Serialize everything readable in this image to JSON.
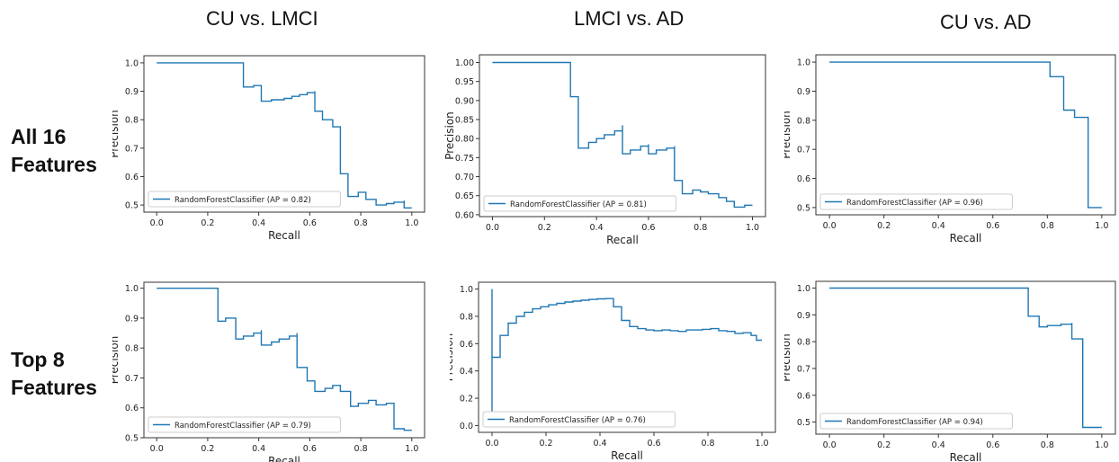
{
  "column_titles": [
    "CU vs. LMCI",
    "LMCI vs. AD",
    "CU vs. AD"
  ],
  "row_labels": [
    {
      "line1": "All 16",
      "line2": "Features"
    },
    {
      "line1": "Top 8",
      "line2": "Features"
    }
  ],
  "colors": {
    "curve": "#1f77b4",
    "axis": "#333333"
  },
  "chart_data": [
    {
      "type": "line",
      "step": "post",
      "legend_position": "lower-left",
      "xlabel": "Recall",
      "ylabel": "Precision",
      "xlim": [
        -0.05,
        1.05
      ],
      "ylim": [
        0.475,
        1.025
      ],
      "xticks": [
        0.0,
        0.2,
        0.4,
        0.6,
        0.8,
        1.0
      ],
      "yticks": [
        0.5,
        0.6,
        0.7,
        0.8,
        0.9,
        1.0
      ],
      "series": [
        {
          "name": "RandomForestClassifier (AP = 0.82)",
          "x": [
            0.0,
            0.34,
            0.34,
            0.38,
            0.41,
            0.41,
            0.45,
            0.5,
            0.53,
            0.56,
            0.59,
            0.62,
            0.62,
            0.65,
            0.69,
            0.72,
            0.72,
            0.75,
            0.75,
            0.79,
            0.82,
            0.82,
            0.86,
            0.9,
            0.93,
            0.97,
            0.97,
            1.0
          ],
          "y": [
            1.0,
            1.0,
            0.915,
            0.92,
            0.92,
            0.865,
            0.87,
            0.875,
            0.882,
            0.888,
            0.895,
            0.9,
            0.83,
            0.8,
            0.775,
            0.775,
            0.61,
            0.61,
            0.53,
            0.545,
            0.535,
            0.52,
            0.5,
            0.505,
            0.51,
            0.515,
            0.49,
            0.49
          ]
        }
      ]
    },
    {
      "type": "line",
      "step": "post",
      "legend_position": "lower-left",
      "xlabel": "Recall",
      "ylabel": "Precision",
      "xlim": [
        -0.05,
        1.05
      ],
      "ylim": [
        0.595,
        1.02
      ],
      "xticks": [
        0.0,
        0.2,
        0.4,
        0.6,
        0.8,
        1.0
      ],
      "yticks": [
        0.6,
        0.65,
        0.7,
        0.75,
        0.8,
        0.85,
        0.9,
        0.95,
        1.0
      ],
      "series": [
        {
          "name": "RandomForestClassifier (AP = 0.81)",
          "x": [
            0.0,
            0.3,
            0.3,
            0.33,
            0.33,
            0.37,
            0.4,
            0.43,
            0.47,
            0.5,
            0.5,
            0.53,
            0.57,
            0.6,
            0.6,
            0.63,
            0.67,
            0.7,
            0.7,
            0.73,
            0.77,
            0.8,
            0.83,
            0.87,
            0.9,
            0.93,
            0.97,
            1.0
          ],
          "y": [
            1.0,
            1.0,
            0.91,
            0.91,
            0.775,
            0.79,
            0.8,
            0.81,
            0.82,
            0.835,
            0.76,
            0.77,
            0.78,
            0.785,
            0.76,
            0.77,
            0.775,
            0.78,
            0.69,
            0.655,
            0.665,
            0.66,
            0.655,
            0.645,
            0.635,
            0.62,
            0.625,
            0.625
          ]
        }
      ]
    },
    {
      "type": "line",
      "step": "post",
      "legend_position": "lower-left",
      "xlabel": "Recall",
      "ylabel": "Precision",
      "xlim": [
        -0.05,
        1.05
      ],
      "ylim": [
        0.475,
        1.025
      ],
      "xticks": [
        0.0,
        0.2,
        0.4,
        0.6,
        0.8,
        1.0
      ],
      "yticks": [
        0.5,
        0.6,
        0.7,
        0.8,
        0.9,
        1.0
      ],
      "series": [
        {
          "name": "RandomForestClassifier (AP = 0.96)",
          "x": [
            0.0,
            0.81,
            0.81,
            0.86,
            0.86,
            0.9,
            0.9,
            0.95,
            0.95,
            1.0
          ],
          "y": [
            1.0,
            1.0,
            0.95,
            0.95,
            0.835,
            0.835,
            0.81,
            0.81,
            0.5,
            0.5
          ]
        }
      ]
    },
    {
      "type": "line",
      "step": "post",
      "legend_position": "lower-left",
      "xlabel": "Recall",
      "ylabel": "Precision",
      "xlim": [
        -0.05,
        1.05
      ],
      "ylim": [
        0.5,
        1.02
      ],
      "xticks": [
        0.0,
        0.2,
        0.4,
        0.6,
        0.8,
        1.0
      ],
      "yticks": [
        0.5,
        0.6,
        0.7,
        0.8,
        0.9,
        1.0
      ],
      "series": [
        {
          "name": "RandomForestClassifier (AP = 0.79)",
          "x": [
            0.0,
            0.24,
            0.24,
            0.27,
            0.31,
            0.31,
            0.34,
            0.38,
            0.41,
            0.41,
            0.45,
            0.48,
            0.52,
            0.55,
            0.55,
            0.59,
            0.62,
            0.66,
            0.69,
            0.72,
            0.76,
            0.79,
            0.83,
            0.86,
            0.9,
            0.93,
            0.97,
            1.0
          ],
          "y": [
            1.0,
            1.0,
            0.89,
            0.9,
            0.9,
            0.83,
            0.84,
            0.85,
            0.86,
            0.81,
            0.82,
            0.83,
            0.84,
            0.85,
            0.735,
            0.69,
            0.655,
            0.665,
            0.675,
            0.655,
            0.605,
            0.615,
            0.625,
            0.61,
            0.615,
            0.53,
            0.525,
            0.525
          ]
        }
      ]
    },
    {
      "type": "line",
      "step": "post",
      "legend_position": "lower-left",
      "xlabel": "Recall",
      "ylabel": "Precision",
      "xlim": [
        -0.05,
        1.05
      ],
      "ylim": [
        -0.05,
        1.05
      ],
      "xticks": [
        0.0,
        0.2,
        0.4,
        0.6,
        0.8,
        1.0
      ],
      "yticks": [
        0.0,
        0.2,
        0.4,
        0.6,
        0.8,
        1.0
      ],
      "series": [
        {
          "name": "RandomForestClassifier (AP = 0.76)",
          "x": [
            0.0,
            0.0,
            0.0,
            0.0,
            0.03,
            0.06,
            0.09,
            0.12,
            0.15,
            0.18,
            0.21,
            0.24,
            0.27,
            0.3,
            0.33,
            0.36,
            0.39,
            0.42,
            0.45,
            0.48,
            0.51,
            0.54,
            0.57,
            0.6,
            0.63,
            0.66,
            0.69,
            0.72,
            0.75,
            0.78,
            0.81,
            0.84,
            0.87,
            0.9,
            0.93,
            0.96,
            0.98,
            1.0
          ],
          "y": [
            0.08,
            1.0,
            0.08,
            0.5,
            0.66,
            0.75,
            0.8,
            0.83,
            0.855,
            0.87,
            0.885,
            0.895,
            0.905,
            0.912,
            0.918,
            0.924,
            0.928,
            0.93,
            0.87,
            0.77,
            0.725,
            0.71,
            0.7,
            0.695,
            0.7,
            0.695,
            0.69,
            0.7,
            0.7,
            0.705,
            0.71,
            0.695,
            0.69,
            0.675,
            0.68,
            0.66,
            0.625,
            0.625
          ]
        }
      ]
    },
    {
      "type": "line",
      "step": "post",
      "legend_position": "lower-left",
      "xlabel": "Recall",
      "ylabel": "Precision",
      "xlim": [
        -0.05,
        1.05
      ],
      "ylim": [
        0.455,
        1.025
      ],
      "xticks": [
        0.0,
        0.2,
        0.4,
        0.6,
        0.8,
        1.0
      ],
      "yticks": [
        0.5,
        0.6,
        0.7,
        0.8,
        0.9,
        1.0
      ],
      "series": [
        {
          "name": "RandomForestClassifier (AP = 0.94)",
          "x": [
            0.0,
            0.73,
            0.73,
            0.77,
            0.77,
            0.8,
            0.85,
            0.89,
            0.89,
            0.93,
            0.93,
            0.96,
            1.0
          ],
          "y": [
            1.0,
            1.0,
            0.895,
            0.895,
            0.855,
            0.86,
            0.865,
            0.87,
            0.81,
            0.81,
            0.48,
            0.48,
            0.48
          ]
        }
      ]
    }
  ]
}
